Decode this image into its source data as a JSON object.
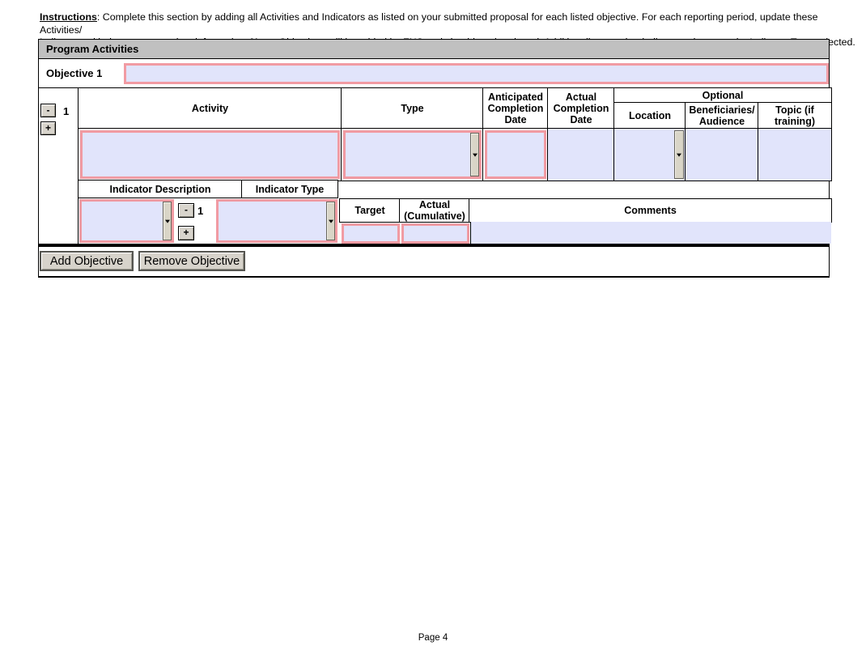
{
  "instructions": {
    "heading": "Instructions",
    "line1_rest": ": Complete this section by adding all Activities and Indicators as listed on your submitted proposal for each listed objective. For each reporting period, update these Activities/",
    "line2_start": "Indicators with the most up to date information. ",
    "note_label": "Note:",
    "line2_end": " Objectives will be added by FNS and should not be altered. Additionally, note that indicator values vary by Indicator Type selected."
  },
  "section": {
    "title": "Program Activities",
    "objective_label": "Objective 1",
    "objective_value": ""
  },
  "activity_table": {
    "row_number": "1",
    "remove_row_label": "-",
    "add_row_label": "+",
    "headers": {
      "activity": "Activity",
      "type": "Type",
      "anticipated": "Anticipated Completion Date",
      "actual": "Actual Completion Date",
      "optional": "Optional",
      "location": "Location",
      "beneficiaries": "Beneficiaries/ Audience",
      "topic": "Topic (if training)"
    },
    "fields": {
      "activity": "",
      "type": "",
      "anticipated_date": "",
      "actual_date": "",
      "location": "",
      "beneficiaries": "",
      "topic": ""
    }
  },
  "indicator_table": {
    "row_number": "1",
    "remove_row_label": "-",
    "add_row_label": "+",
    "headers": {
      "description": "Indicator Description",
      "type": "Indicator Type",
      "target": "Target",
      "actual_cumulative": "Actual (Cumulative)",
      "comments": "Comments"
    },
    "fields": {
      "description": "",
      "type": "",
      "target": "",
      "actual": "",
      "comments": ""
    }
  },
  "actions": {
    "add_objective": "Add Objective",
    "remove_objective": "Remove Objective"
  },
  "footer": {
    "page": "Page 4"
  },
  "colors": {
    "required_border": "#f19ba3",
    "field_fill": "#e1e4fb",
    "header_bar": "#c0c0c0"
  }
}
